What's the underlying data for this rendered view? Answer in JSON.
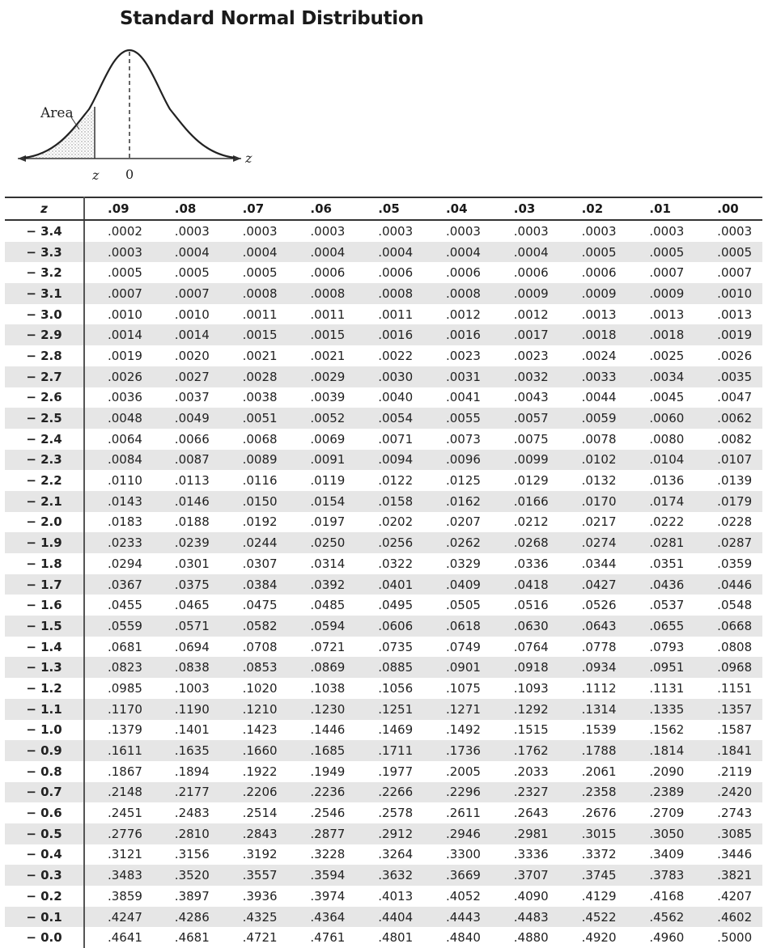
{
  "title": "Standard Normal Distribution",
  "figure": {
    "area_label": "Area",
    "z_label": "z",
    "zero_label": "0",
    "axis_label": "z"
  },
  "table": {
    "header": [
      "z",
      ".09",
      ".08",
      ".07",
      ".06",
      ".05",
      ".04",
      ".03",
      ".02",
      ".01",
      ".00"
    ],
    "rows": [
      [
        "− 3.4",
        ".0002",
        ".0003",
        ".0003",
        ".0003",
        ".0003",
        ".0003",
        ".0003",
        ".0003",
        ".0003",
        ".0003"
      ],
      [
        "− 3.3",
        ".0003",
        ".0004",
        ".0004",
        ".0004",
        ".0004",
        ".0004",
        ".0004",
        ".0005",
        ".0005",
        ".0005"
      ],
      [
        "− 3.2",
        ".0005",
        ".0005",
        ".0005",
        ".0006",
        ".0006",
        ".0006",
        ".0006",
        ".0006",
        ".0007",
        ".0007"
      ],
      [
        "− 3.1",
        ".0007",
        ".0007",
        ".0008",
        ".0008",
        ".0008",
        ".0008",
        ".0009",
        ".0009",
        ".0009",
        ".0010"
      ],
      [
        "− 3.0",
        ".0010",
        ".0010",
        ".0011",
        ".0011",
        ".0011",
        ".0012",
        ".0012",
        ".0013",
        ".0013",
        ".0013"
      ],
      [
        "− 2.9",
        ".0014",
        ".0014",
        ".0015",
        ".0015",
        ".0016",
        ".0016",
        ".0017",
        ".0018",
        ".0018",
        ".0019"
      ],
      [
        "− 2.8",
        ".0019",
        ".0020",
        ".0021",
        ".0021",
        ".0022",
        ".0023",
        ".0023",
        ".0024",
        ".0025",
        ".0026"
      ],
      [
        "− 2.7",
        ".0026",
        ".0027",
        ".0028",
        ".0029",
        ".0030",
        ".0031",
        ".0032",
        ".0033",
        ".0034",
        ".0035"
      ],
      [
        "− 2.6",
        ".0036",
        ".0037",
        ".0038",
        ".0039",
        ".0040",
        ".0041",
        ".0043",
        ".0044",
        ".0045",
        ".0047"
      ],
      [
        "− 2.5",
        ".0048",
        ".0049",
        ".0051",
        ".0052",
        ".0054",
        ".0055",
        ".0057",
        ".0059",
        ".0060",
        ".0062"
      ],
      [
        "− 2.4",
        ".0064",
        ".0066",
        ".0068",
        ".0069",
        ".0071",
        ".0073",
        ".0075",
        ".0078",
        ".0080",
        ".0082"
      ],
      [
        "− 2.3",
        ".0084",
        ".0087",
        ".0089",
        ".0091",
        ".0094",
        ".0096",
        ".0099",
        ".0102",
        ".0104",
        ".0107"
      ],
      [
        "− 2.2",
        ".0110",
        ".0113",
        ".0116",
        ".0119",
        ".0122",
        ".0125",
        ".0129",
        ".0132",
        ".0136",
        ".0139"
      ],
      [
        "− 2.1",
        ".0143",
        ".0146",
        ".0150",
        ".0154",
        ".0158",
        ".0162",
        ".0166",
        ".0170",
        ".0174",
        ".0179"
      ],
      [
        "− 2.0",
        ".0183",
        ".0188",
        ".0192",
        ".0197",
        ".0202",
        ".0207",
        ".0212",
        ".0217",
        ".0222",
        ".0228"
      ],
      [
        "− 1.9",
        ".0233",
        ".0239",
        ".0244",
        ".0250",
        ".0256",
        ".0262",
        ".0268",
        ".0274",
        ".0281",
        ".0287"
      ],
      [
        "− 1.8",
        ".0294",
        ".0301",
        ".0307",
        ".0314",
        ".0322",
        ".0329",
        ".0336",
        ".0344",
        ".0351",
        ".0359"
      ],
      [
        "− 1.7",
        ".0367",
        ".0375",
        ".0384",
        ".0392",
        ".0401",
        ".0409",
        ".0418",
        ".0427",
        ".0436",
        ".0446"
      ],
      [
        "− 1.6",
        ".0455",
        ".0465",
        ".0475",
        ".0485",
        ".0495",
        ".0505",
        ".0516",
        ".0526",
        ".0537",
        ".0548"
      ],
      [
        "− 1.5",
        ".0559",
        ".0571",
        ".0582",
        ".0594",
        ".0606",
        ".0618",
        ".0630",
        ".0643",
        ".0655",
        ".0668"
      ],
      [
        "− 1.4",
        ".0681",
        ".0694",
        ".0708",
        ".0721",
        ".0735",
        ".0749",
        ".0764",
        ".0778",
        ".0793",
        ".0808"
      ],
      [
        "− 1.3",
        ".0823",
        ".0838",
        ".0853",
        ".0869",
        ".0885",
        ".0901",
        ".0918",
        ".0934",
        ".0951",
        ".0968"
      ],
      [
        "− 1.2",
        ".0985",
        ".1003",
        ".1020",
        ".1038",
        ".1056",
        ".1075",
        ".1093",
        ".1112",
        ".1131",
        ".1151"
      ],
      [
        "− 1.1",
        ".1170",
        ".1190",
        ".1210",
        ".1230",
        ".1251",
        ".1271",
        ".1292",
        ".1314",
        ".1335",
        ".1357"
      ],
      [
        "− 1.0",
        ".1379",
        ".1401",
        ".1423",
        ".1446",
        ".1469",
        ".1492",
        ".1515",
        ".1539",
        ".1562",
        ".1587"
      ],
      [
        "− 0.9",
        ".1611",
        ".1635",
        ".1660",
        ".1685",
        ".1711",
        ".1736",
        ".1762",
        ".1788",
        ".1814",
        ".1841"
      ],
      [
        "− 0.8",
        ".1867",
        ".1894",
        ".1922",
        ".1949",
        ".1977",
        ".2005",
        ".2033",
        ".2061",
        ".2090",
        ".2119"
      ],
      [
        "− 0.7",
        ".2148",
        ".2177",
        ".2206",
        ".2236",
        ".2266",
        ".2296",
        ".2327",
        ".2358",
        ".2389",
        ".2420"
      ],
      [
        "− 0.6",
        ".2451",
        ".2483",
        ".2514",
        ".2546",
        ".2578",
        ".2611",
        ".2643",
        ".2676",
        ".2709",
        ".2743"
      ],
      [
        "− 0.5",
        ".2776",
        ".2810",
        ".2843",
        ".2877",
        ".2912",
        ".2946",
        ".2981",
        ".3015",
        ".3050",
        ".3085"
      ],
      [
        "− 0.4",
        ".3121",
        ".3156",
        ".3192",
        ".3228",
        ".3264",
        ".3300",
        ".3336",
        ".3372",
        ".3409",
        ".3446"
      ],
      [
        "− 0.3",
        ".3483",
        ".3520",
        ".3557",
        ".3594",
        ".3632",
        ".3669",
        ".3707",
        ".3745",
        ".3783",
        ".3821"
      ],
      [
        "− 0.2",
        ".3859",
        ".3897",
        ".3936",
        ".3974",
        ".4013",
        ".4052",
        ".4090",
        ".4129",
        ".4168",
        ".4207"
      ],
      [
        "− 0.1",
        ".4247",
        ".4286",
        ".4325",
        ".4364",
        ".4404",
        ".4443",
        ".4483",
        ".4522",
        ".4562",
        ".4602"
      ],
      [
        "− 0.0",
        ".4641",
        ".4681",
        ".4721",
        ".4761",
        ".4801",
        ".4840",
        ".4880",
        ".4920",
        ".4960",
        ".5000"
      ]
    ]
  }
}
